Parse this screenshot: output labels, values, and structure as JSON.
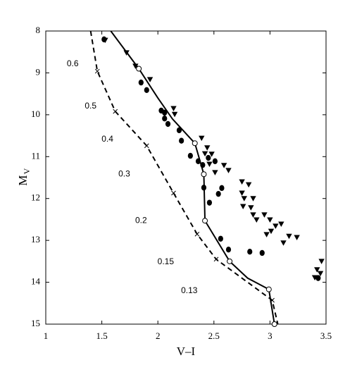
{
  "chart_data": {
    "type": "scatter",
    "xlabel": "V–I",
    "ylabel": "M",
    "ylabel_sub": "V",
    "xlim": [
      1,
      3.5
    ],
    "ylim": [
      8,
      15
    ],
    "y_inverted": true,
    "xticks": [
      1,
      1.5,
      2,
      2.5,
      3,
      3.5
    ],
    "yticks": [
      8,
      9,
      10,
      11,
      12,
      13,
      14,
      15
    ],
    "grid": false,
    "series": [
      {
        "style": "solid-line",
        "color": "#000000",
        "x": [
          1.58,
          1.83,
          2.0,
          2.13,
          2.33,
          2.41,
          2.42,
          2.64,
          2.8,
          2.99,
          3.04
        ],
        "y": [
          8,
          8.9,
          9.6,
          10.1,
          10.68,
          11.42,
          12.53,
          13.5,
          13.9,
          14.17,
          15
        ]
      },
      {
        "style": "open-circle",
        "color": "#000000",
        "x": [
          1.83,
          2.33,
          2.41,
          2.42,
          2.64,
          2.99,
          3.04
        ],
        "y": [
          8.9,
          10.68,
          11.42,
          12.53,
          13.5,
          14.17,
          15
        ]
      },
      {
        "style": "dashed-line",
        "color": "#000000",
        "x": [
          1.4,
          1.46,
          1.62,
          1.9,
          2.14,
          2.35,
          2.52,
          3.02,
          3.07
        ],
        "y": [
          8,
          8.96,
          9.92,
          10.74,
          11.87,
          12.85,
          13.45,
          14.43,
          15
        ]
      },
      {
        "style": "cross",
        "color": "#000000",
        "x": [
          1.46,
          1.62,
          1.9,
          2.14,
          2.35,
          2.52,
          3.02
        ],
        "y": [
          8.96,
          9.92,
          10.74,
          11.87,
          12.85,
          13.45,
          14.43
        ]
      },
      {
        "style": "filled-circle",
        "color": "#000000",
        "x": [
          1.52,
          1.85,
          1.9,
          2.03,
          2.06,
          2.06,
          2.09,
          2.19,
          2.21,
          2.29,
          2.36,
          2.45,
          2.4,
          2.51,
          2.41,
          2.46,
          2.54,
          2.57,
          2.56,
          2.63,
          2.82,
          2.93,
          3.43
        ],
        "y": [
          8.2,
          9.23,
          9.41,
          9.9,
          9.95,
          10.09,
          10.22,
          10.37,
          10.62,
          10.98,
          11.11,
          11.03,
          11.2,
          11.11,
          11.74,
          12.1,
          11.89,
          11.75,
          12.96,
          13.22,
          13.27,
          13.3,
          13.9
        ]
      },
      {
        "style": "triangle-down",
        "color": "#000000",
        "x": [
          1.53,
          1.72,
          1.8,
          1.93,
          2.14,
          2.15,
          2.39,
          2.44,
          2.42,
          2.48,
          2.46,
          2.59,
          2.63,
          2.51,
          2.75,
          2.81,
          2.75,
          2.77,
          2.85,
          2.76,
          2.83,
          2.85,
          2.88,
          2.95,
          3.0,
          3.05,
          3.1,
          3.01,
          2.97,
          3.17,
          3.24,
          3.12,
          3.46,
          3.42,
          3.45,
          3.4
        ],
        "y": [
          8.22,
          8.52,
          8.84,
          9.16,
          9.85,
          9.99,
          10.56,
          10.79,
          10.93,
          10.94,
          11.18,
          11.21,
          11.33,
          11.38,
          11.6,
          11.67,
          11.87,
          12.0,
          12.0,
          12.19,
          12.22,
          12.39,
          12.51,
          12.39,
          12.51,
          12.66,
          12.61,
          12.78,
          12.86,
          12.9,
          12.93,
          13.06,
          13.5,
          13.7,
          13.79,
          13.89
        ]
      }
    ],
    "annotations": [
      {
        "text": "0.6",
        "x": 1.24,
        "y": 8.79
      },
      {
        "text": "0.5",
        "x": 1.4,
        "y": 9.8
      },
      {
        "text": "0.4",
        "x": 1.55,
        "y": 10.59
      },
      {
        "text": "0.3",
        "x": 1.7,
        "y": 11.42
      },
      {
        "text": "0.2",
        "x": 1.85,
        "y": 12.53
      },
      {
        "text": "0.15",
        "x": 2.07,
        "y": 13.52
      },
      {
        "text": "0.13",
        "x": 2.28,
        "y": 14.21
      }
    ]
  }
}
